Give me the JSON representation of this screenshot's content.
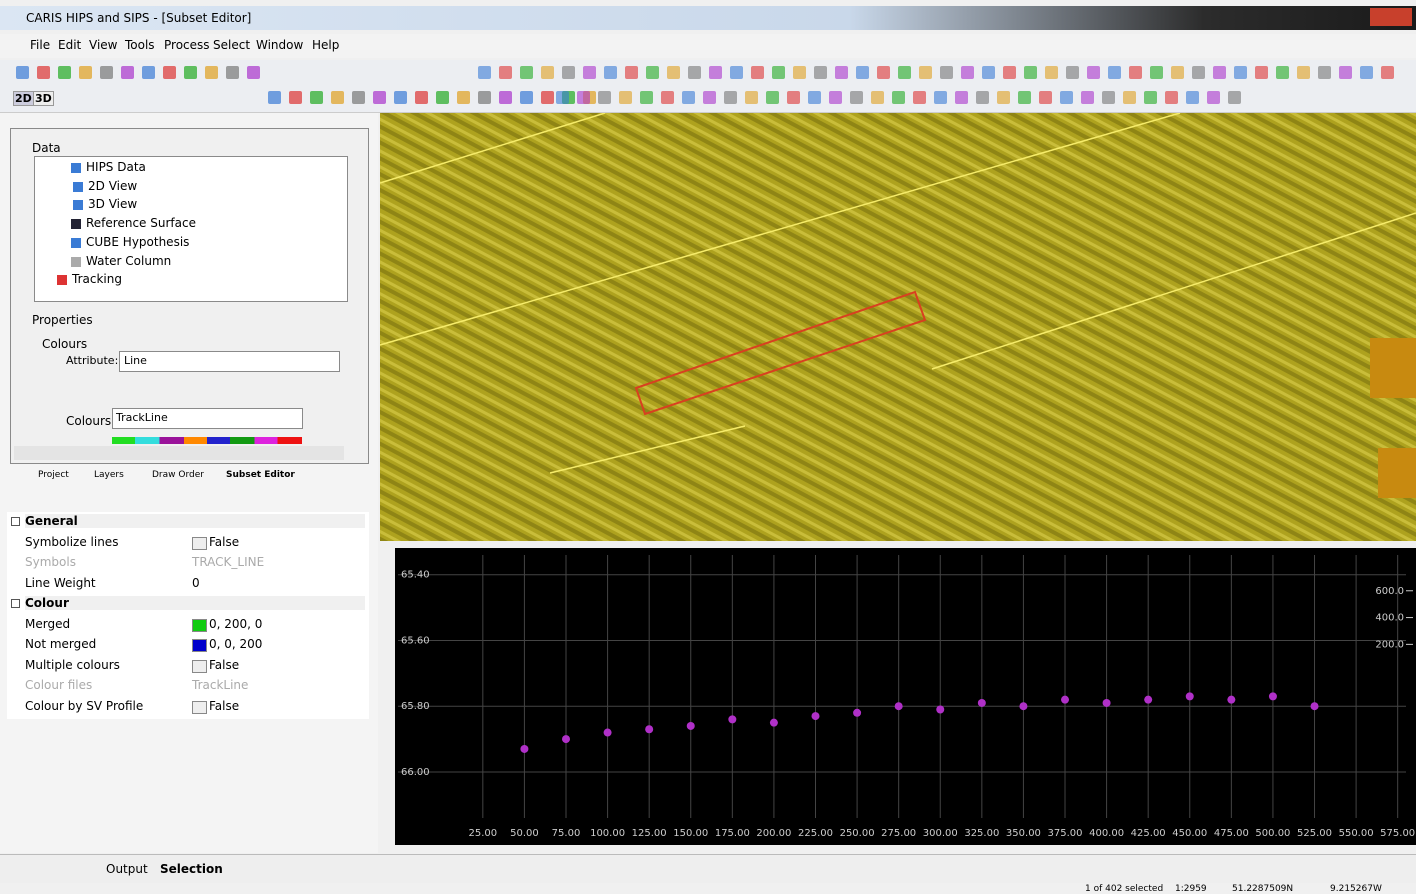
{
  "window": {
    "title": "CARIS HIPS and SIPS - [Subset Editor]"
  },
  "menu": [
    "File",
    "Edit",
    "View",
    "Tools",
    "Process",
    "Select",
    "Window",
    "Help"
  ],
  "toolbar_modes": [
    "2D",
    "3D"
  ],
  "tree": {
    "heading": "Data",
    "items": [
      "HIPS Data",
      "2D View",
      "3D View",
      "Reference Surface",
      "CUBE Hypothesis",
      "Water Column",
      "Tracking"
    ]
  },
  "properties": {
    "heading": "Properties",
    "group": "Colours",
    "attribute_label": "Attribute:",
    "attribute_value": "Line",
    "colours_label": "Colours:",
    "colours_value": "TrackLine"
  },
  "panel_tabs": [
    "Project",
    "Layers",
    "Draw Order",
    "Subset Editor"
  ],
  "property_grid": {
    "sections": [
      {
        "name": "General",
        "rows": [
          [
            "Symbolize lines",
            "False"
          ],
          [
            "Symbols",
            "TRACK_LINE"
          ],
          [
            "Line Weight",
            "0"
          ]
        ]
      },
      {
        "name": "Colour",
        "rows": [
          [
            "Merged",
            "0, 200, 0"
          ],
          [
            "Not merged",
            "0, 0, 200"
          ],
          [
            "Multiple colours",
            "False"
          ],
          [
            "Colour files",
            "TrackLine"
          ],
          [
            "Colour by SV Profile",
            "False"
          ]
        ]
      }
    ]
  },
  "bottom_tabs": [
    "Output",
    "Selection"
  ],
  "status": [
    "1 of 402 selected",
    "1:2959",
    "51.2287509N",
    "9.215267W"
  ],
  "chart_data": {
    "type": "scatter",
    "color": "#b030c8",
    "x": [
      50,
      75,
      100,
      125,
      150,
      175,
      200,
      225,
      250,
      275,
      300,
      325,
      350,
      375,
      400,
      425,
      450,
      475,
      500,
      525
    ],
    "values": [
      65.93,
      65.9,
      65.88,
      65.87,
      65.86,
      65.84,
      65.85,
      65.83,
      65.82,
      65.8,
      65.81,
      65.79,
      65.8,
      65.78,
      65.79,
      65.78,
      65.77,
      65.78,
      65.77,
      65.8
    ],
    "xlim": [
      -26,
      580
    ],
    "ylim": [
      66.14,
      65.34
    ],
    "y2lim": [
      -1096,
      867
    ],
    "grid": true,
    "xticks": [
      {
        "value": 25,
        "label": "25.00"
      },
      {
        "value": 50,
        "label": "50.00"
      },
      {
        "value": 75,
        "label": "75.00"
      },
      {
        "value": 100,
        "label": "100.00"
      },
      {
        "value": 125,
        "label": "125.00"
      },
      {
        "value": 150,
        "label": "150.00"
      },
      {
        "value": 175,
        "label": "175.00"
      },
      {
        "value": 200,
        "label": "200.00"
      },
      {
        "value": 225,
        "label": "225.00"
      },
      {
        "value": 250,
        "label": "250.00"
      },
      {
        "value": 275,
        "label": "275.00"
      },
      {
        "value": 300,
        "label": "300.00"
      },
      {
        "value": 325,
        "label": "325.00"
      },
      {
        "value": 350,
        "label": "350.00"
      },
      {
        "value": 375,
        "label": "375.00"
      },
      {
        "value": 400,
        "label": "400.00"
      },
      {
        "value": 425,
        "label": "425.00"
      },
      {
        "value": 450,
        "label": "450.00"
      },
      {
        "value": 475,
        "label": "475.00"
      },
      {
        "value": 500,
        "label": "500.00"
      },
      {
        "value": 525,
        "label": "525.00"
      },
      {
        "value": 550,
        "label": "550.00"
      },
      {
        "value": 575,
        "label": "575.00"
      }
    ],
    "yticks": [
      {
        "value": 65.4,
        "label": "65.40"
      },
      {
        "value": 65.6,
        "label": "65.60"
      },
      {
        "value": 65.8,
        "label": "65.80"
      },
      {
        "value": 66,
        "label": "66.00"
      }
    ],
    "y2ticks": [
      {
        "value": 600,
        "label": "600.0"
      },
      {
        "value": 400,
        "label": "400.0"
      },
      {
        "value": 200,
        "label": "200.0"
      }
    ]
  }
}
